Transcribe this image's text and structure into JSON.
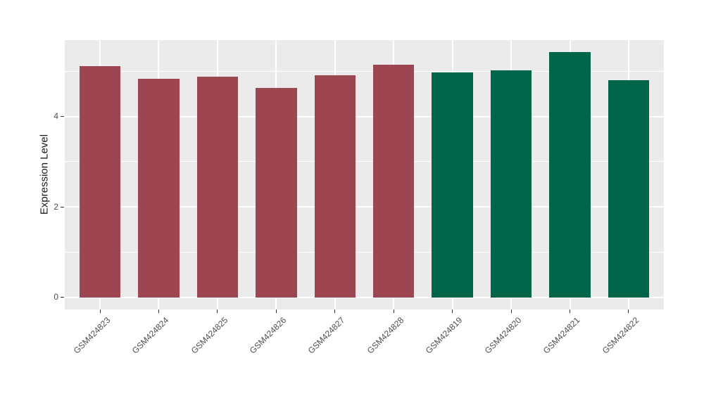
{
  "chart_data": {
    "type": "bar",
    "title": "",
    "xlabel": "",
    "ylabel": "Expression Level",
    "categories": [
      "GSM424823",
      "GSM424824",
      "GSM424825",
      "GSM424826",
      "GSM424827",
      "GSM424828",
      "GSM424819",
      "GSM424820",
      "GSM424821",
      "GSM424822"
    ],
    "values": [
      5.11,
      4.83,
      4.88,
      4.64,
      4.91,
      5.15,
      4.97,
      5.03,
      5.43,
      4.8
    ],
    "bar_colors": [
      "#9E4552",
      "#9E4552",
      "#9E4552",
      "#9E4552",
      "#9E4552",
      "#9E4552",
      "#00664A",
      "#00664A",
      "#00664A",
      "#00664A"
    ],
    "group_colors": {
      "maroon_group": "#9E4552",
      "green_group": "#00664A"
    },
    "yticks": [
      0,
      2,
      4
    ],
    "minor_gridlines": [
      1,
      3,
      5
    ],
    "ylim": [
      -0.28,
      5.69
    ],
    "bar_width_fraction": 0.7,
    "grid": true,
    "legend": "none",
    "panel_background": "#EBEBEB",
    "gridline_color": "#FFFFFF",
    "tick_mark_color": "#333333",
    "axis_text_color": "#4D4D4D",
    "axis_title_color": "#1A1A1A"
  }
}
